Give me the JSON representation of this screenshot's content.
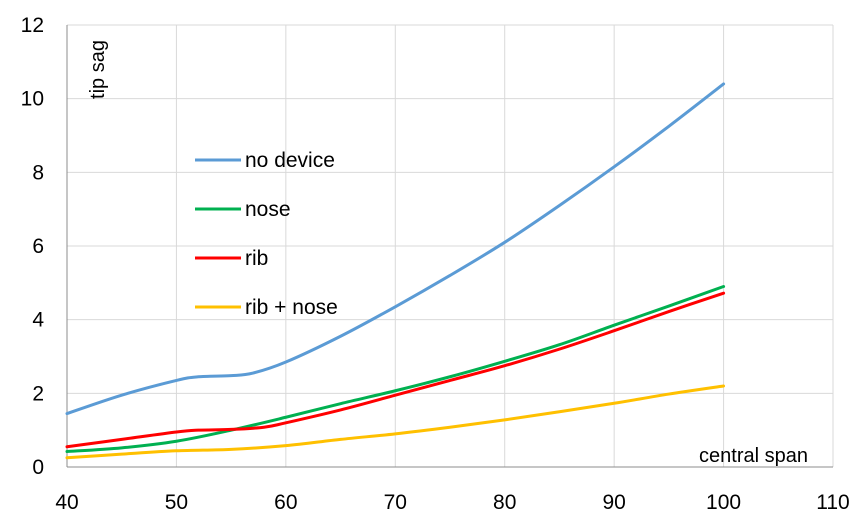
{
  "chart_data": {
    "type": "line",
    "xlabel": "central span",
    "ylabel": "tip sag",
    "xlim": [
      40,
      110
    ],
    "ylim": [
      0,
      12
    ],
    "x_ticks": [
      40,
      50,
      60,
      70,
      80,
      90,
      100,
      110
    ],
    "y_ticks": [
      0,
      2,
      4,
      6,
      8,
      10,
      12
    ],
    "grid": true,
    "legend_position": "inside-left",
    "series": [
      {
        "name": "no device",
        "color": "#5b9bd5",
        "x": [
          40,
          45,
          50,
          52,
          55,
          57,
          60,
          65,
          70,
          75,
          80,
          85,
          90,
          95,
          100
        ],
        "y": [
          1.45,
          1.95,
          2.35,
          2.45,
          2.48,
          2.55,
          2.85,
          3.55,
          4.35,
          5.2,
          6.1,
          7.1,
          8.15,
          9.25,
          10.4
        ]
      },
      {
        "name": "nose",
        "color": "#00b050",
        "x": [
          40,
          45,
          50,
          55,
          60,
          65,
          70,
          75,
          80,
          85,
          90,
          95,
          100
        ],
        "y": [
          0.42,
          0.52,
          0.7,
          1.0,
          1.35,
          1.72,
          2.07,
          2.45,
          2.87,
          3.32,
          3.85,
          4.37,
          4.9
        ]
      },
      {
        "name": "rib",
        "color": "#ff0000",
        "x": [
          40,
          45,
          50,
          52,
          55,
          58,
          60,
          65,
          70,
          75,
          80,
          85,
          90,
          95,
          100
        ],
        "y": [
          0.55,
          0.75,
          0.95,
          1.0,
          1.02,
          1.08,
          1.2,
          1.55,
          1.95,
          2.35,
          2.75,
          3.2,
          3.7,
          4.22,
          4.72
        ]
      },
      {
        "name": "rib + nose",
        "color": "#ffc000",
        "x": [
          40,
          45,
          50,
          55,
          60,
          65,
          70,
          75,
          80,
          85,
          90,
          95,
          100
        ],
        "y": [
          0.25,
          0.35,
          0.44,
          0.48,
          0.58,
          0.75,
          0.9,
          1.08,
          1.28,
          1.5,
          1.73,
          1.98,
          2.2
        ]
      }
    ]
  }
}
